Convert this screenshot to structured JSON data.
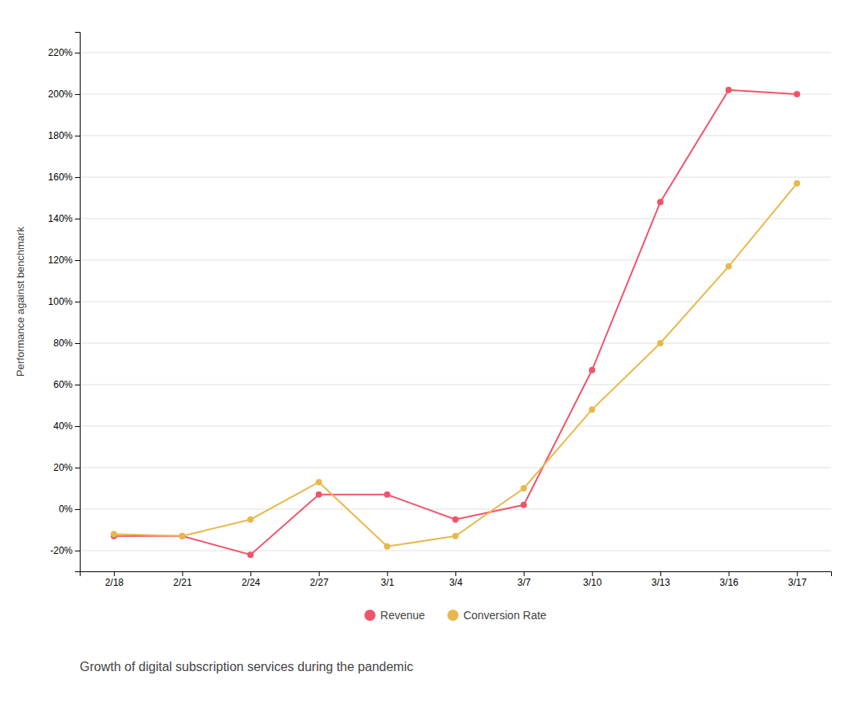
{
  "chart_data": {
    "type": "line",
    "title": "Growth of digital subscription services during the pandemic",
    "y_label": "Performance against benchmark",
    "categories": [
      "2/18",
      "2/21",
      "2/24",
      "2/27",
      "3/1",
      "3/4",
      "3/7",
      "3/10",
      "3/13",
      "3/16",
      "3/17"
    ],
    "series": [
      {
        "name": "Revenue",
        "color": "#f0546a",
        "marker": "circle",
        "values": [
          -13,
          -13,
          -22,
          7,
          7,
          -5,
          2,
          67,
          148,
          202,
          200
        ]
      },
      {
        "name": "Conversion Rate",
        "color": "#e8b84b",
        "marker": "circle",
        "values": [
          -12,
          -13,
          -5,
          13,
          -18,
          -13,
          10,
          48,
          80,
          117,
          157
        ]
      }
    ],
    "ylim": [
      -30,
      230
    ],
    "yticks": [
      {
        "value": -20,
        "label": "-20%"
      },
      {
        "value": 0,
        "label": "0%"
      },
      {
        "value": 20,
        "label": "20%"
      },
      {
        "value": 40,
        "label": "40%"
      },
      {
        "value": 60,
        "label": "60%"
      },
      {
        "value": 80,
        "label": "80%"
      },
      {
        "value": 100,
        "label": "100%"
      },
      {
        "value": 120,
        "label": "120%"
      },
      {
        "value": 140,
        "label": "140%"
      },
      {
        "value": 160,
        "label": "160%"
      },
      {
        "value": 180,
        "label": "180%"
      },
      {
        "value": 200,
        "label": "200%"
      },
      {
        "value": 220,
        "label": "220%"
      }
    ],
    "grid": true,
    "legend": "bottom"
  }
}
